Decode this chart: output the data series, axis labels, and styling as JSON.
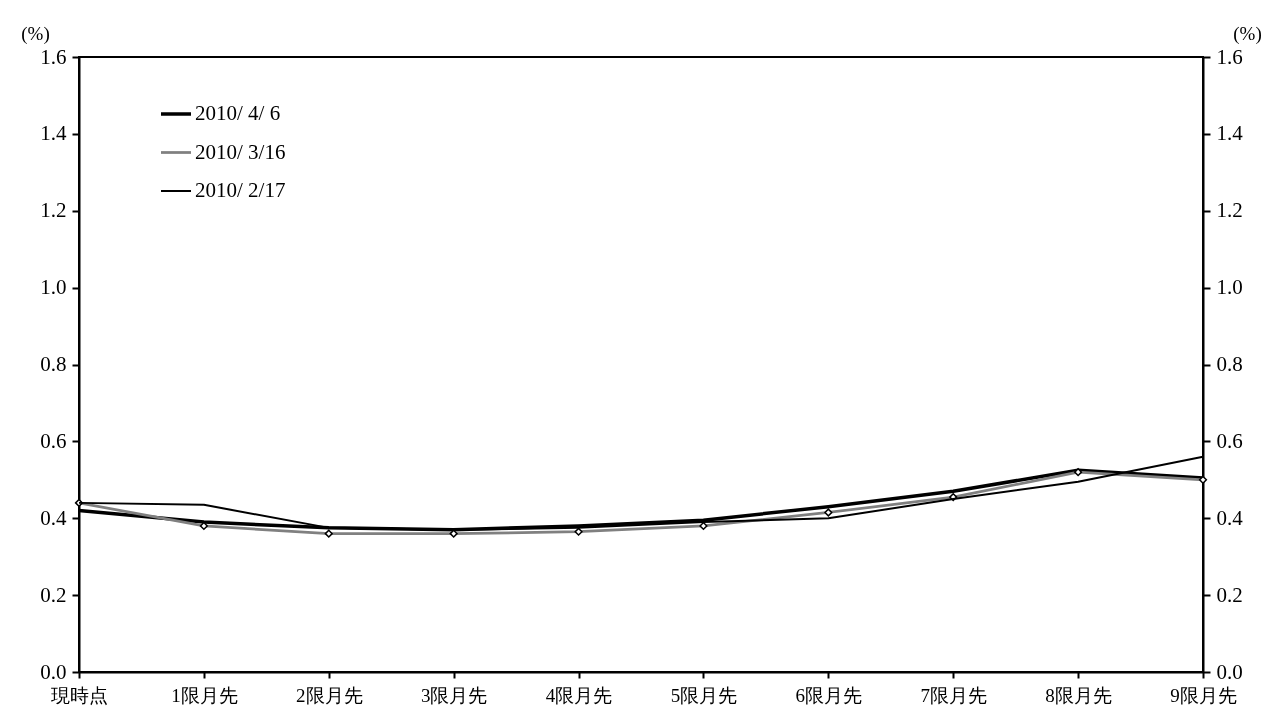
{
  "chart_data": {
    "type": "line",
    "ylabel": "(%)",
    "y2label": "(%)",
    "categories": [
      "現時点",
      "1限月先",
      "2限月先",
      "3限月先",
      "4限月先",
      "5限月先",
      "6限月先",
      "7限月先",
      "8限月先",
      "9限月先"
    ],
    "series": [
      {
        "name": "2010/ 4/ 6",
        "color": "#000000",
        "values": [
          0.42,
          0.39,
          0.375,
          0.37,
          0.38,
          0.395,
          0.43,
          0.47,
          0.525,
          0.505
        ]
      },
      {
        "name": "2010/ 3/16",
        "color": "#808080",
        "marker": "diamond",
        "values": [
          0.44,
          0.38,
          0.36,
          0.36,
          0.365,
          0.38,
          0.415,
          0.455,
          0.52,
          0.5
        ]
      },
      {
        "name": "2010/ 2/17",
        "color": "#000000",
        "values": [
          0.44,
          0.435,
          0.375,
          0.37,
          0.375,
          0.39,
          0.4,
          0.45,
          0.495,
          0.56
        ]
      }
    ],
    "ylim": [
      0,
      1.6
    ],
    "yticks": [
      {
        "value": 0,
        "label": "0.0"
      },
      {
        "value": 0.2,
        "label": "0.2"
      },
      {
        "value": 0.4,
        "label": "0.4"
      },
      {
        "value": 0.6,
        "label": "0.6"
      },
      {
        "value": 0.8,
        "label": "0.8"
      },
      {
        "value": 1,
        "label": "1.0"
      },
      {
        "value": 1.2,
        "label": "1.2"
      },
      {
        "value": 1.4,
        "label": "1.4"
      },
      {
        "value": 1.6,
        "label": "1.6"
      }
    ],
    "y2lim": [
      0,
      1.6
    ],
    "y2ticks": [
      {
        "value": 0,
        "label": "0.0"
      },
      {
        "value": 0.2,
        "label": "0.2"
      },
      {
        "value": 0.4,
        "label": "0.4"
      },
      {
        "value": 0.6,
        "label": "0.6"
      },
      {
        "value": 0.8,
        "label": "0.8"
      },
      {
        "value": 1,
        "label": "1.0"
      },
      {
        "value": 1.2,
        "label": "1.2"
      },
      {
        "value": 1.4,
        "label": "1.4"
      },
      {
        "value": 1.6,
        "label": "1.6"
      }
    ],
    "legend": "top left",
    "grid": false
  }
}
